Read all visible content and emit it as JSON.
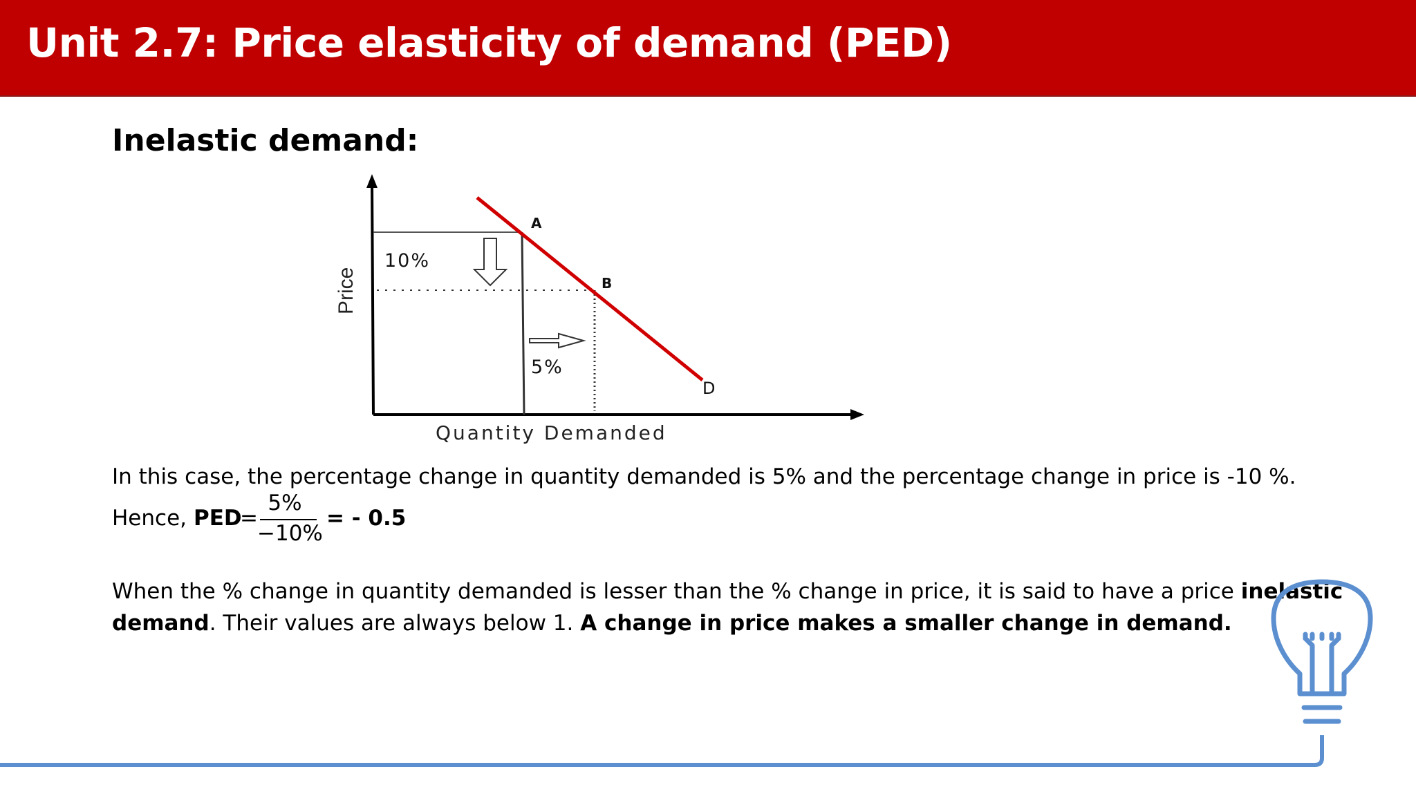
{
  "header": {
    "title": "Unit 2.7: Price elasticity of demand (PED)"
  },
  "section": {
    "heading": "Inelastic demand:"
  },
  "graph": {
    "y_axis_label": "Price",
    "x_axis_label": "Quantity Demanded",
    "price_change_label": "10%",
    "quantity_change_label": "5%",
    "point_a": "A",
    "point_b": "B",
    "curve_label": "D"
  },
  "explanation": {
    "case_text": "In this case, the percentage change in quantity demanded is 5%  and  the percentage change in price is -10 %.",
    "hence": "Hence, ",
    "ped_label": "PED",
    "equals": " = ",
    "numerator": "5%",
    "denominator": "−10%",
    "result": "= - 0.5"
  },
  "conclusion": {
    "part1": "When the % change in quantity demanded is lesser than the % change in price, it is said to have a price ",
    "bold1": "inelastic",
    "bold2": "demand",
    "part2": ". Their values are always below 1. ",
    "bold3": "A change in price makes a smaller change in demand."
  },
  "colors": {
    "header_bg": "#c00000",
    "curve": "#d00000",
    "accent_line": "#5b8fd0"
  },
  "icons": [
    "lightbulb-icon"
  ]
}
